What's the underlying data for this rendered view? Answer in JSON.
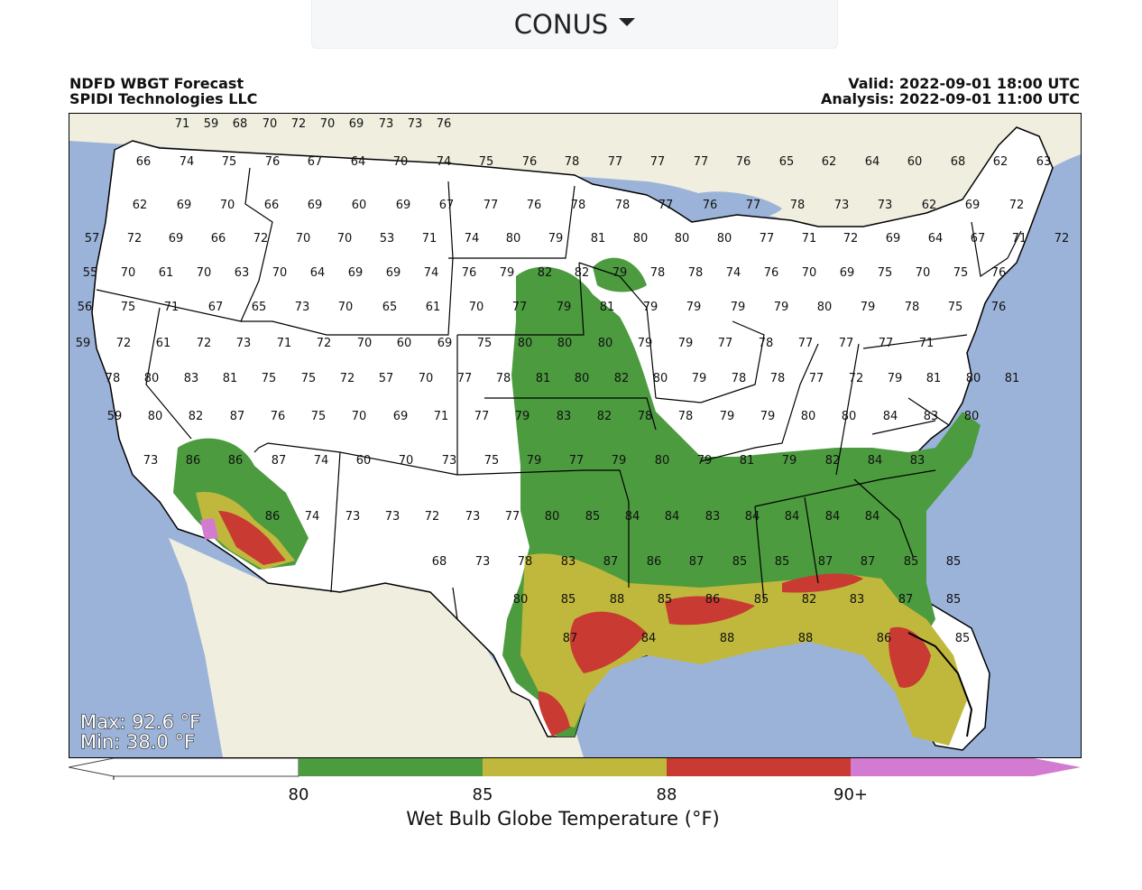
{
  "region_selector": {
    "value": "CONUS"
  },
  "header": {
    "title": "NDFD WBGT Forecast",
    "subtitle": "SPIDI Technologies LLC",
    "valid": "Valid: 2022-09-01 18:00 UTC",
    "analysis": "Analysis: 2022-09-01 11:00 UTC"
  },
  "stats": {
    "max": "Max: 92.6 °F",
    "min": "Min: 38.0 °F"
  },
  "colorbar": {
    "title": "Wet Bulb Globe Temperature (°F)",
    "ticks": [
      "80",
      "85",
      "88",
      "90+"
    ],
    "colors": {
      "below_80": "#ffffff",
      "80_85": "#4c9b3f",
      "85_88": "#c0b83c",
      "88_90": "#c83a32",
      "90_plus": "#d37ad1"
    }
  },
  "colors": {
    "ocean": "#9cb3d9",
    "land_other": "#efeedf",
    "state_border": "#000000"
  },
  "station_values": [
    "71",
    "59",
    "68",
    "70",
    "72",
    "70",
    "69",
    "73",
    "73",
    "76",
    "66",
    "74",
    "75",
    "76",
    "67",
    "64",
    "70",
    "74",
    "75",
    "76",
    "78",
    "77",
    "77",
    "77",
    "76",
    "65",
    "62",
    "64",
    "60",
    "68",
    "62",
    "63",
    "62",
    "69",
    "70",
    "66",
    "69",
    "60",
    "69",
    "67",
    "77",
    "76",
    "78",
    "78",
    "77",
    "76",
    "77",
    "78",
    "73",
    "73",
    "62",
    "69",
    "72",
    "57",
    "72",
    "69",
    "66",
    "72",
    "70",
    "70",
    "53",
    "71",
    "74",
    "80",
    "79",
    "81",
    "80",
    "80",
    "80",
    "77",
    "71",
    "72",
    "69",
    "64",
    "67",
    "71",
    "72",
    "55",
    "70",
    "61",
    "70",
    "63",
    "70",
    "64",
    "69",
    "69",
    "74",
    "76",
    "79",
    "82",
    "82",
    "79",
    "78",
    "78",
    "74",
    "76",
    "70",
    "69",
    "75",
    "70",
    "75",
    "76",
    "56",
    "75",
    "71",
    "67",
    "65",
    "73",
    "70",
    "65",
    "61",
    "70",
    "77",
    "79",
    "81",
    "79",
    "79",
    "79",
    "79",
    "80",
    "79",
    "78",
    "75",
    "76",
    "59",
    "72",
    "61",
    "72",
    "73",
    "71",
    "72",
    "70",
    "60",
    "69",
    "75",
    "80",
    "80",
    "80",
    "79",
    "79",
    "77",
    "78",
    "77",
    "77",
    "77",
    "71",
    "78",
    "80",
    "83",
    "81",
    "75",
    "75",
    "72",
    "57",
    "70",
    "77",
    "78",
    "81",
    "80",
    "82",
    "80",
    "79",
    "78",
    "78",
    "77",
    "72",
    "79",
    "81",
    "80",
    "81",
    "59",
    "80",
    "82",
    "87",
    "76",
    "75",
    "70",
    "69",
    "71",
    "77",
    "79",
    "83",
    "82",
    "78",
    "78",
    "79",
    "79",
    "80",
    "80",
    "84",
    "83",
    "80",
    "73",
    "86",
    "86",
    "87",
    "74",
    "60",
    "70",
    "73",
    "75",
    "79",
    "77",
    "79",
    "80",
    "79",
    "81",
    "79",
    "82",
    "84",
    "83",
    "86",
    "74",
    "73",
    "73",
    "72",
    "73",
    "77",
    "80",
    "85",
    "84",
    "84",
    "83",
    "84",
    "84",
    "84",
    "84",
    "68",
    "73",
    "78",
    "83",
    "87",
    "86",
    "87",
    "85",
    "85",
    "87",
    "87",
    "85",
    "85",
    "80",
    "85",
    "88",
    "85",
    "86",
    "85",
    "82",
    "83",
    "87",
    "85",
    "87",
    "84",
    "88",
    "88",
    "86",
    "85"
  ]
}
